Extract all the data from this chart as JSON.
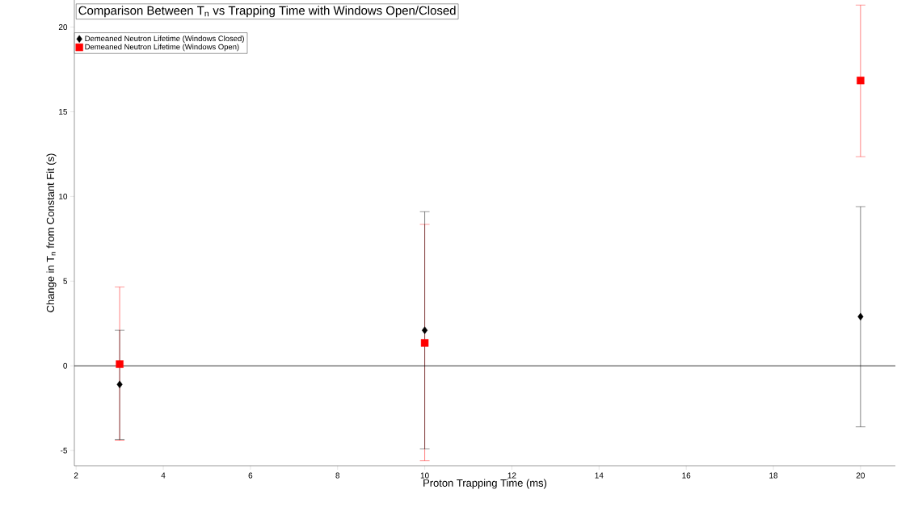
{
  "chart_data": {
    "type": "scatter",
    "title": "Comparison Between T$_{n}$ vs Trapping Time with Windows Open/Closed",
    "xlabel": "Proton Trapping Time (ms)",
    "ylabel": "Change in T$_{n}$ from Constant Fit (s)",
    "x": [
      3,
      10,
      20
    ],
    "series": [
      {
        "name": "Demeaned Neutron Lifetime (Windows Closed)",
        "color": "#000000",
        "marker": "diamond",
        "values": [
          -1.1,
          2.1,
          2.9
        ],
        "errors": [
          [
            -4.35,
            2.1
          ],
          [
            -4.9,
            9.1
          ],
          [
            -3.6,
            9.4
          ]
        ]
      },
      {
        "name": "Demeaned Neutron Lifetime (Windows Open)",
        "color": "#ff0000",
        "marker": "square",
        "values": [
          0.1,
          1.35,
          16.85
        ],
        "errors": [
          [
            -4.4,
            4.65
          ],
          [
            -5.6,
            8.35
          ],
          [
            12.35,
            21.3
          ]
        ]
      }
    ],
    "xlim": [
      1.96,
      20.8
    ],
    "ylim": [
      -5.9,
      21.6
    ],
    "xticks": [
      2,
      4,
      6,
      8,
      10,
      12,
      14,
      16,
      18,
      20
    ],
    "yticks": [
      -5,
      0,
      5,
      10,
      15,
      20
    ],
    "ref_lines": [
      {
        "axis": "y",
        "value": 0,
        "color": "#000000"
      }
    ],
    "grid": false,
    "legend": "top left"
  }
}
